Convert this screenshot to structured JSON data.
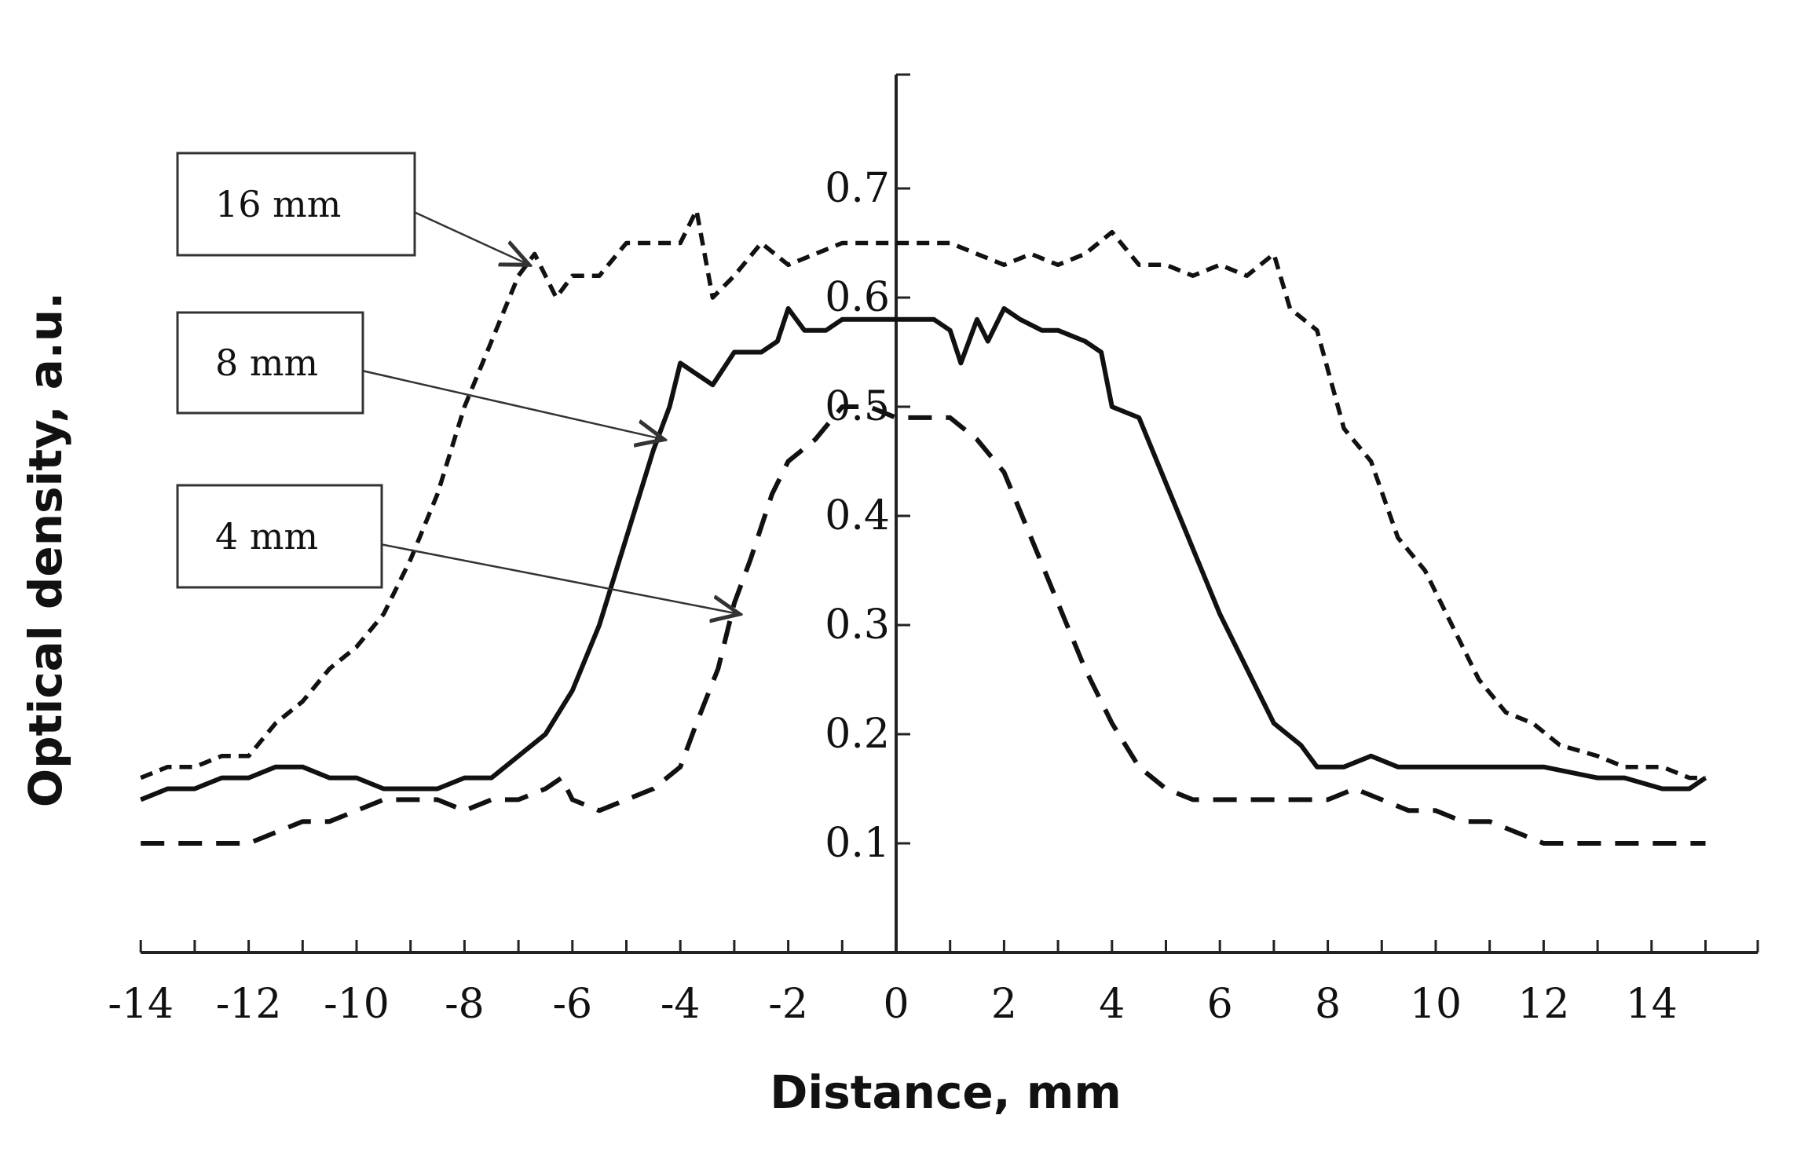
{
  "chart_data": {
    "type": "line",
    "title": "",
    "xlabel": "Distance, mm",
    "ylabel": "Optical density, a.u.",
    "xlim": [
      -14,
      15
    ],
    "ylim": [
      0,
      0.8
    ],
    "x_ticks": [
      "-14",
      "-12",
      "-10",
      "-8",
      "-6",
      "-4",
      "-2",
      "0",
      "2",
      "4",
      "6",
      "8",
      "10",
      "12",
      "14"
    ],
    "y_ticks": [
      "0.1",
      "0.2",
      "0.3",
      "0.4",
      "0.5",
      "0.6",
      "0.7"
    ],
    "grid": false,
    "legend": "callout boxes with arrows, left side",
    "series": [
      {
        "name": "16 mm",
        "style": "short-dash",
        "points": [
          [
            -14.0,
            0.16
          ],
          [
            -13.5,
            0.17
          ],
          [
            -13.0,
            0.17
          ],
          [
            -12.5,
            0.18
          ],
          [
            -12.0,
            0.18
          ],
          [
            -11.5,
            0.21
          ],
          [
            -11.0,
            0.23
          ],
          [
            -10.5,
            0.26
          ],
          [
            -10.0,
            0.28
          ],
          [
            -9.5,
            0.31
          ],
          [
            -9.0,
            0.36
          ],
          [
            -8.5,
            0.42
          ],
          [
            -8.0,
            0.5
          ],
          [
            -7.5,
            0.56
          ],
          [
            -7.0,
            0.62
          ],
          [
            -6.7,
            0.64
          ],
          [
            -6.3,
            0.6
          ],
          [
            -6.0,
            0.62
          ],
          [
            -5.5,
            0.62
          ],
          [
            -5.0,
            0.65
          ],
          [
            -4.5,
            0.65
          ],
          [
            -4.0,
            0.65
          ],
          [
            -3.7,
            0.68
          ],
          [
            -3.4,
            0.6
          ],
          [
            -3.0,
            0.62
          ],
          [
            -2.5,
            0.65
          ],
          [
            -2.0,
            0.63
          ],
          [
            -1.5,
            0.64
          ],
          [
            -1.0,
            0.65
          ],
          [
            0.0,
            0.65
          ],
          [
            1.0,
            0.65
          ],
          [
            1.5,
            0.64
          ],
          [
            2.0,
            0.63
          ],
          [
            2.5,
            0.64
          ],
          [
            3.0,
            0.63
          ],
          [
            3.5,
            0.64
          ],
          [
            4.0,
            0.66
          ],
          [
            4.5,
            0.63
          ],
          [
            5.0,
            0.63
          ],
          [
            5.5,
            0.62
          ],
          [
            6.0,
            0.63
          ],
          [
            6.5,
            0.62
          ],
          [
            7.0,
            0.64
          ],
          [
            7.3,
            0.59
          ],
          [
            7.8,
            0.57
          ],
          [
            8.3,
            0.48
          ],
          [
            8.8,
            0.45
          ],
          [
            9.3,
            0.38
          ],
          [
            9.8,
            0.35
          ],
          [
            10.3,
            0.3
          ],
          [
            10.8,
            0.25
          ],
          [
            11.3,
            0.22
          ],
          [
            11.8,
            0.21
          ],
          [
            12.3,
            0.19
          ],
          [
            13.0,
            0.18
          ],
          [
            13.5,
            0.17
          ],
          [
            14.2,
            0.17
          ],
          [
            14.7,
            0.16
          ],
          [
            15.0,
            0.16
          ]
        ]
      },
      {
        "name": "8 mm",
        "style": "solid",
        "points": [
          [
            -14.0,
            0.14
          ],
          [
            -13.5,
            0.15
          ],
          [
            -13.0,
            0.15
          ],
          [
            -12.5,
            0.16
          ],
          [
            -12.0,
            0.16
          ],
          [
            -11.5,
            0.17
          ],
          [
            -11.0,
            0.17
          ],
          [
            -10.5,
            0.16
          ],
          [
            -10.0,
            0.16
          ],
          [
            -9.5,
            0.15
          ],
          [
            -9.0,
            0.15
          ],
          [
            -8.5,
            0.15
          ],
          [
            -8.0,
            0.16
          ],
          [
            -7.5,
            0.16
          ],
          [
            -7.0,
            0.18
          ],
          [
            -6.5,
            0.2
          ],
          [
            -6.0,
            0.24
          ],
          [
            -5.5,
            0.3
          ],
          [
            -5.0,
            0.38
          ],
          [
            -4.5,
            0.46
          ],
          [
            -4.2,
            0.5
          ],
          [
            -4.0,
            0.54
          ],
          [
            -3.7,
            0.53
          ],
          [
            -3.4,
            0.52
          ],
          [
            -3.0,
            0.55
          ],
          [
            -2.5,
            0.55
          ],
          [
            -2.2,
            0.56
          ],
          [
            -2.0,
            0.59
          ],
          [
            -1.7,
            0.57
          ],
          [
            -1.3,
            0.57
          ],
          [
            -1.0,
            0.58
          ],
          [
            0.0,
            0.58
          ],
          [
            0.7,
            0.58
          ],
          [
            1.0,
            0.57
          ],
          [
            1.2,
            0.54
          ],
          [
            1.5,
            0.58
          ],
          [
            1.7,
            0.56
          ],
          [
            2.0,
            0.59
          ],
          [
            2.3,
            0.58
          ],
          [
            2.7,
            0.57
          ],
          [
            3.0,
            0.57
          ],
          [
            3.5,
            0.56
          ],
          [
            3.8,
            0.55
          ],
          [
            4.0,
            0.5
          ],
          [
            4.5,
            0.49
          ],
          [
            5.0,
            0.43
          ],
          [
            5.5,
            0.37
          ],
          [
            6.0,
            0.31
          ],
          [
            6.5,
            0.26
          ],
          [
            7.0,
            0.21
          ],
          [
            7.5,
            0.19
          ],
          [
            7.8,
            0.17
          ],
          [
            8.3,
            0.17
          ],
          [
            8.8,
            0.18
          ],
          [
            9.3,
            0.17
          ],
          [
            9.8,
            0.17
          ],
          [
            10.5,
            0.17
          ],
          [
            11.5,
            0.17
          ],
          [
            12.0,
            0.17
          ],
          [
            13.0,
            0.16
          ],
          [
            13.5,
            0.16
          ],
          [
            14.2,
            0.15
          ],
          [
            14.7,
            0.15
          ],
          [
            15.0,
            0.16
          ]
        ]
      },
      {
        "name": "4 mm",
        "style": "long-dash",
        "points": [
          [
            -14.0,
            0.1
          ],
          [
            -13.0,
            0.1
          ],
          [
            -12.0,
            0.1
          ],
          [
            -11.5,
            0.11
          ],
          [
            -11.0,
            0.12
          ],
          [
            -10.5,
            0.12
          ],
          [
            -10.0,
            0.13
          ],
          [
            -9.5,
            0.14
          ],
          [
            -9.0,
            0.14
          ],
          [
            -8.5,
            0.14
          ],
          [
            -8.0,
            0.13
          ],
          [
            -7.5,
            0.14
          ],
          [
            -7.0,
            0.14
          ],
          [
            -6.5,
            0.15
          ],
          [
            -6.2,
            0.16
          ],
          [
            -6.0,
            0.14
          ],
          [
            -5.5,
            0.13
          ],
          [
            -5.0,
            0.14
          ],
          [
            -4.5,
            0.15
          ],
          [
            -4.0,
            0.17
          ],
          [
            -3.7,
            0.21
          ],
          [
            -3.3,
            0.26
          ],
          [
            -3.0,
            0.32
          ],
          [
            -2.7,
            0.36
          ],
          [
            -2.3,
            0.42
          ],
          [
            -2.0,
            0.45
          ],
          [
            -1.5,
            0.47
          ],
          [
            -1.0,
            0.5
          ],
          [
            -0.5,
            0.5
          ],
          [
            0.0,
            0.49
          ],
          [
            0.5,
            0.49
          ],
          [
            1.0,
            0.49
          ],
          [
            1.5,
            0.47
          ],
          [
            2.0,
            0.44
          ],
          [
            2.5,
            0.38
          ],
          [
            3.0,
            0.32
          ],
          [
            3.5,
            0.26
          ],
          [
            4.0,
            0.21
          ],
          [
            4.5,
            0.17
          ],
          [
            5.0,
            0.15
          ],
          [
            5.5,
            0.14
          ],
          [
            6.0,
            0.14
          ],
          [
            6.5,
            0.14
          ],
          [
            7.0,
            0.14
          ],
          [
            7.5,
            0.14
          ],
          [
            8.0,
            0.14
          ],
          [
            8.5,
            0.15
          ],
          [
            9.0,
            0.14
          ],
          [
            9.5,
            0.13
          ],
          [
            10.0,
            0.13
          ],
          [
            10.5,
            0.12
          ],
          [
            11.0,
            0.12
          ],
          [
            11.5,
            0.11
          ],
          [
            12.0,
            0.1
          ],
          [
            13.0,
            0.1
          ],
          [
            14.0,
            0.1
          ],
          [
            15.0,
            0.1
          ]
        ]
      }
    ],
    "annotations": [
      {
        "label": "16 mm",
        "target": [
          -6.8,
          0.63
        ]
      },
      {
        "label": "8 mm",
        "target": [
          -4.3,
          0.47
        ]
      },
      {
        "label": "4 mm",
        "target": [
          -2.9,
          0.31
        ]
      }
    ]
  }
}
